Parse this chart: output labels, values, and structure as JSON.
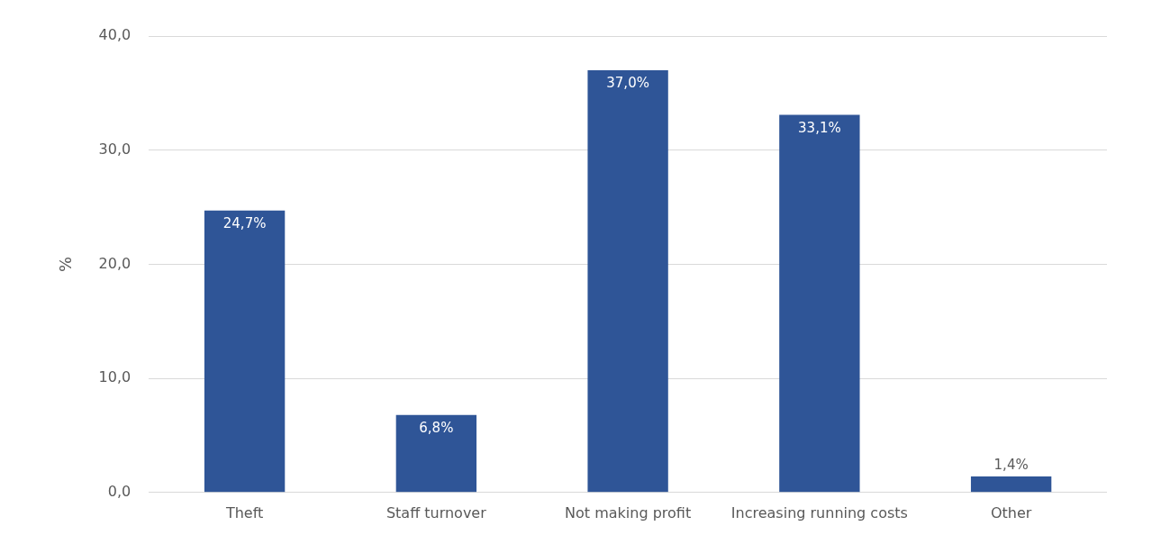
{
  "chart_data": {
    "type": "bar",
    "ylabel": "%",
    "categories": [
      "Theft",
      "Staff turnover",
      "Not making profit",
      "Increasing running costs",
      "Other"
    ],
    "values": [
      24.7,
      6.8,
      37.0,
      33.1,
      1.4
    ],
    "value_labels": [
      "24,7%",
      "6,8%",
      "37,0%",
      "33,1%",
      "1,4%"
    ],
    "color": "#2f5597",
    "ylim": [
      0,
      40
    ],
    "yticks": [
      {
        "value": 0,
        "label": "0,0"
      },
      {
        "value": 10,
        "label": "10,0"
      },
      {
        "value": 20,
        "label": "20,0"
      },
      {
        "value": 30,
        "label": "30,0"
      },
      {
        "value": 40,
        "label": "40,0"
      }
    ],
    "grid": "y",
    "legend": false
  }
}
